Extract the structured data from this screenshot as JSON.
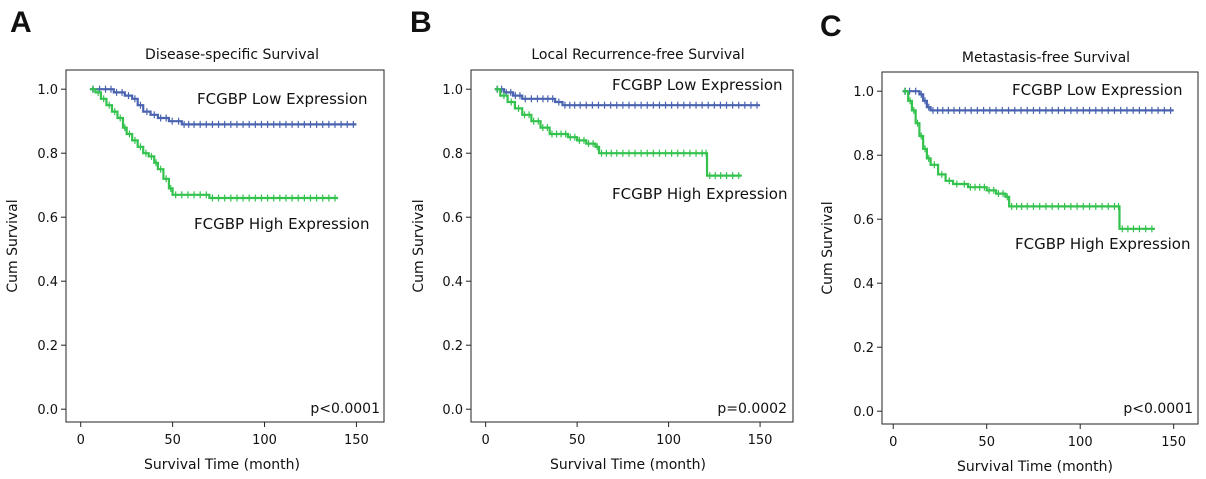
{
  "chart_data": [
    {
      "panel": "A",
      "type": "line",
      "title": "Disease-specific Survival",
      "xlabel": "Survival Time (month)",
      "ylabel": "Cum Survival",
      "xticks": [
        0,
        50,
        100,
        150
      ],
      "yticks": [
        "0.0",
        "0.2",
        "0.4",
        "0.6",
        "0.8",
        "1.0"
      ],
      "xlim": [
        -8,
        165
      ],
      "ylim": [
        -0.04,
        1.06
      ],
      "grid": false,
      "p_value": "p<0.0001",
      "series": [
        {
          "name": "FCGBP Low Expression",
          "color": "#4a63b0",
          "x": [
            5,
            12,
            18,
            24,
            28,
            31,
            34,
            38,
            42,
            48,
            55,
            60,
            80,
            100,
            120,
            150
          ],
          "y": [
            1.0,
            1.0,
            0.99,
            0.98,
            0.97,
            0.95,
            0.93,
            0.92,
            0.91,
            0.9,
            0.89,
            0.89,
            0.89,
            0.89,
            0.89,
            0.89
          ],
          "label_text": "FCGBP Low Expression"
        },
        {
          "name": "FCGBP High Expression",
          "color": "#33c24d",
          "x": [
            5,
            8,
            11,
            14,
            17,
            20,
            23,
            25,
            28,
            31,
            34,
            37,
            40,
            42,
            45,
            48,
            50,
            60,
            70,
            80,
            100,
            120,
            140
          ],
          "y": [
            1.0,
            0.99,
            0.97,
            0.95,
            0.93,
            0.91,
            0.88,
            0.86,
            0.84,
            0.82,
            0.8,
            0.79,
            0.77,
            0.75,
            0.72,
            0.69,
            0.67,
            0.67,
            0.66,
            0.66,
            0.66,
            0.66,
            0.66
          ],
          "label_text": "FCGBP High Expression"
        }
      ]
    },
    {
      "panel": "B",
      "type": "line",
      "title": "Local Recurrence-free Survival",
      "xlabel": "Survival Time (month)",
      "ylabel": "Cum Survival",
      "xticks": [
        0,
        50,
        100,
        150
      ],
      "yticks": [
        "0.0",
        "0.2",
        "0.4",
        "0.6",
        "0.8",
        "1.0"
      ],
      "xlim": [
        -8,
        168
      ],
      "ylim": [
        -0.04,
        1.06
      ],
      "grid": false,
      "p_value": "p=0.0002",
      "series": [
        {
          "name": "FCGBP Low Expression",
          "color": "#4a63b0",
          "x": [
            5,
            10,
            15,
            20,
            30,
            38,
            42,
            50,
            60,
            80,
            100,
            120,
            150
          ],
          "y": [
            1.0,
            0.99,
            0.98,
            0.97,
            0.97,
            0.96,
            0.95,
            0.95,
            0.95,
            0.95,
            0.95,
            0.95,
            0.95
          ],
          "label_text": "FCGBP Low Expression"
        },
        {
          "name": "FCGBP High Expression",
          "color": "#33c24d",
          "x": [
            5,
            8,
            12,
            16,
            20,
            25,
            30,
            35,
            40,
            45,
            50,
            55,
            60,
            62,
            70,
            90,
            110,
            120,
            121,
            130,
            140
          ],
          "y": [
            1.0,
            0.98,
            0.96,
            0.94,
            0.92,
            0.9,
            0.88,
            0.86,
            0.86,
            0.85,
            0.84,
            0.83,
            0.82,
            0.8,
            0.8,
            0.8,
            0.8,
            0.8,
            0.73,
            0.73,
            0.73
          ],
          "label_text": "FCGBP High Expression"
        }
      ]
    },
    {
      "panel": "C",
      "type": "line",
      "title": "Metastasis-free Survival",
      "xlabel": "Survival Time (month)",
      "ylabel": "Cum Survival",
      "xticks": [
        0,
        50,
        100,
        150
      ],
      "yticks": [
        "0.0",
        "0.2",
        "0.4",
        "0.6",
        "0.8",
        "1.0"
      ],
      "xlim": [
        -6,
        163
      ],
      "ylim": [
        -0.04,
        1.06
      ],
      "grid": false,
      "p_value": "p<0.0001",
      "series": [
        {
          "name": "FCGBP Low Expression",
          "color": "#4a63b0",
          "x": [
            5,
            10,
            14,
            16,
            18,
            20,
            25,
            40,
            60,
            80,
            100,
            120,
            150
          ],
          "y": [
            1.0,
            1.0,
            0.99,
            0.97,
            0.95,
            0.94,
            0.94,
            0.94,
            0.94,
            0.94,
            0.94,
            0.94,
            0.94
          ],
          "label_text": "FCGBP Low Expression"
        },
        {
          "name": "FCGBP High Expression",
          "color": "#33c24d",
          "x": [
            5,
            8,
            10,
            12,
            14,
            16,
            18,
            20,
            24,
            28,
            32,
            36,
            40,
            45,
            50,
            55,
            60,
            62,
            70,
            90,
            110,
            120,
            121,
            130,
            140
          ],
          "y": [
            1.0,
            0.97,
            0.94,
            0.9,
            0.86,
            0.82,
            0.79,
            0.77,
            0.74,
            0.72,
            0.71,
            0.71,
            0.7,
            0.7,
            0.69,
            0.68,
            0.67,
            0.64,
            0.64,
            0.64,
            0.64,
            0.64,
            0.57,
            0.57,
            0.57
          ],
          "label_text": "FCGBP High Expression"
        }
      ]
    }
  ]
}
